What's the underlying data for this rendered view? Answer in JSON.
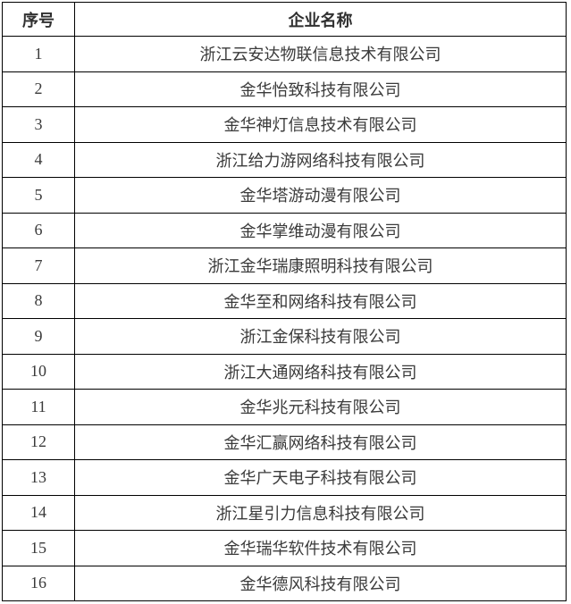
{
  "page": {
    "background_color": "#ffffff",
    "border_color": "#000000",
    "text_color": "#3a3a3a"
  },
  "table": {
    "columns": [
      "序号",
      "企业名称"
    ],
    "rows": [
      {
        "no": "1",
        "name": "浙江云安达物联信息技术有限公司"
      },
      {
        "no": "2",
        "name": "金华怡致科技有限公司"
      },
      {
        "no": "3",
        "name": "金华神灯信息技术有限公司"
      },
      {
        "no": "4",
        "name": "浙江给力游网络科技有限公司"
      },
      {
        "no": "5",
        "name": "金华塔游动漫有限公司"
      },
      {
        "no": "6",
        "name": "金华掌维动漫有限公司"
      },
      {
        "no": "7",
        "name": "浙江金华瑞康照明科技有限公司"
      },
      {
        "no": "8",
        "name": "金华至和网络科技有限公司"
      },
      {
        "no": "9",
        "name": "浙江金保科技有限公司"
      },
      {
        "no": "10",
        "name": "浙江大通网络科技有限公司"
      },
      {
        "no": "11",
        "name": "金华兆元科技有限公司"
      },
      {
        "no": "12",
        "name": "金华汇赢网络科技有限公司"
      },
      {
        "no": "13",
        "name": "金华广天电子科技有限公司"
      },
      {
        "no": "14",
        "name": "浙江星引力信息科技有限公司"
      },
      {
        "no": "15",
        "name": "金华瑞华软件技术有限公司"
      },
      {
        "no": "16",
        "name": "金华德风科技有限公司"
      }
    ]
  }
}
